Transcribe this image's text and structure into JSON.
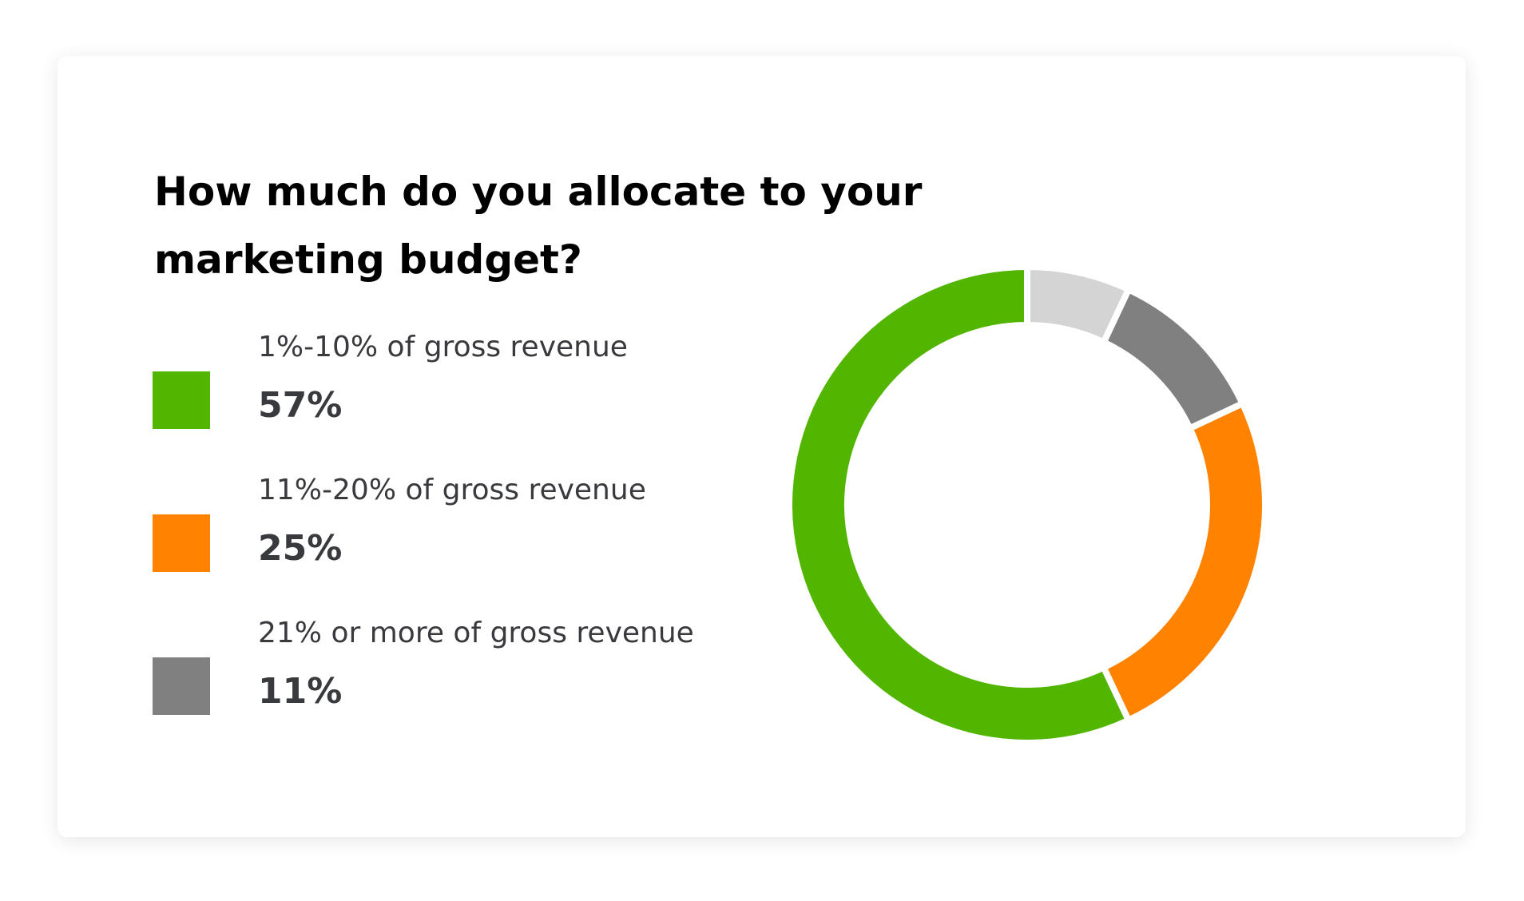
{
  "chart_data": {
    "type": "donut",
    "title": "How much do you allocate to your marketing budget?",
    "categories": [
      "1%-10% of gross revenue",
      "11%-20% of gross revenue",
      "21% or more of gross revenue",
      null
    ],
    "values": [
      57,
      25,
      11,
      7
    ],
    "value_labels": [
      "57%",
      "25%",
      "11%",
      null
    ],
    "colors": [
      "#52b600",
      "#ff8200",
      "#808080",
      "#d4d4d4"
    ]
  }
}
